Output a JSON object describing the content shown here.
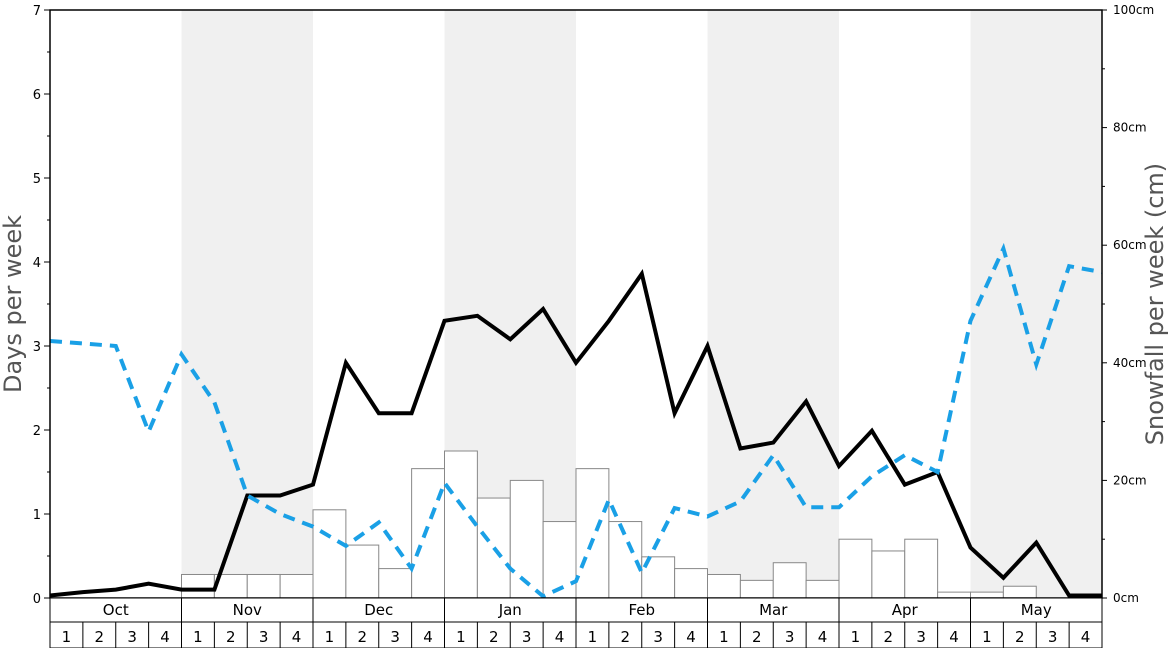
{
  "chart_data": {
    "type": "bar+line",
    "ylabel_left": "Days per week",
    "ylabel_right": "Snowfall per week (cm)",
    "ylim_left": [
      0,
      7
    ],
    "ylim_right": [
      0,
      100
    ],
    "left_ticks": [
      "0",
      "1",
      "2",
      "3",
      "4",
      "5",
      "6",
      "7"
    ],
    "right_ticks": [
      "0cm",
      "20cm",
      "40cm",
      "60cm",
      "80cm",
      "100cm"
    ],
    "months": [
      "Oct",
      "Nov",
      "Dec",
      "Jan",
      "Feb",
      "Mar",
      "Apr",
      "May"
    ],
    "weeks": [
      "1",
      "2",
      "3",
      "4"
    ],
    "shaded_months": [
      "Nov",
      "Jan",
      "Mar",
      "May"
    ],
    "colors": {
      "bars_fill": "#ffffff",
      "bars_stroke": "#888888",
      "solid_line": "#000000",
      "dashed_line": "#1aa0e6",
      "shade": "#f0f0f0"
    },
    "series": [
      {
        "kind": "bar",
        "axis": "right",
        "values": [
          0,
          0,
          0,
          0,
          4,
          4,
          4,
          4,
          15,
          9,
          5,
          22,
          25,
          17,
          20,
          13,
          22,
          13,
          7,
          5,
          4,
          3,
          6,
          3,
          10,
          8,
          10,
          1,
          1,
          2,
          0,
          0
        ]
      },
      {
        "kind": "line",
        "style": "solid",
        "axis": "left",
        "values": [
          0.03,
          0.07,
          0.1,
          0.17,
          0.1,
          0.1,
          1.22,
          1.22,
          1.35,
          2.8,
          2.2,
          2.2,
          3.3,
          3.36,
          3.08,
          3.44,
          2.8,
          3.3,
          3.86,
          2.2,
          3.0,
          1.78,
          1.85,
          2.34,
          1.57,
          1.99,
          1.35,
          1.5,
          0.6,
          0.24,
          0.66,
          0.03,
          0.03
        ]
      },
      {
        "kind": "line",
        "style": "dashed",
        "axis": "left",
        "values": [
          3.06,
          3.03,
          3.0,
          1.98,
          2.9,
          2.33,
          1.22,
          1.0,
          0.85,
          0.62,
          0.9,
          0.35,
          1.37,
          0.85,
          0.35,
          0.02,
          0.2,
          1.17,
          0.3,
          1.07,
          0.97,
          1.15,
          1.7,
          1.08,
          1.08,
          1.45,
          1.7,
          1.5,
          3.3,
          4.16,
          2.78,
          3.95,
          3.88
        ]
      }
    ]
  }
}
